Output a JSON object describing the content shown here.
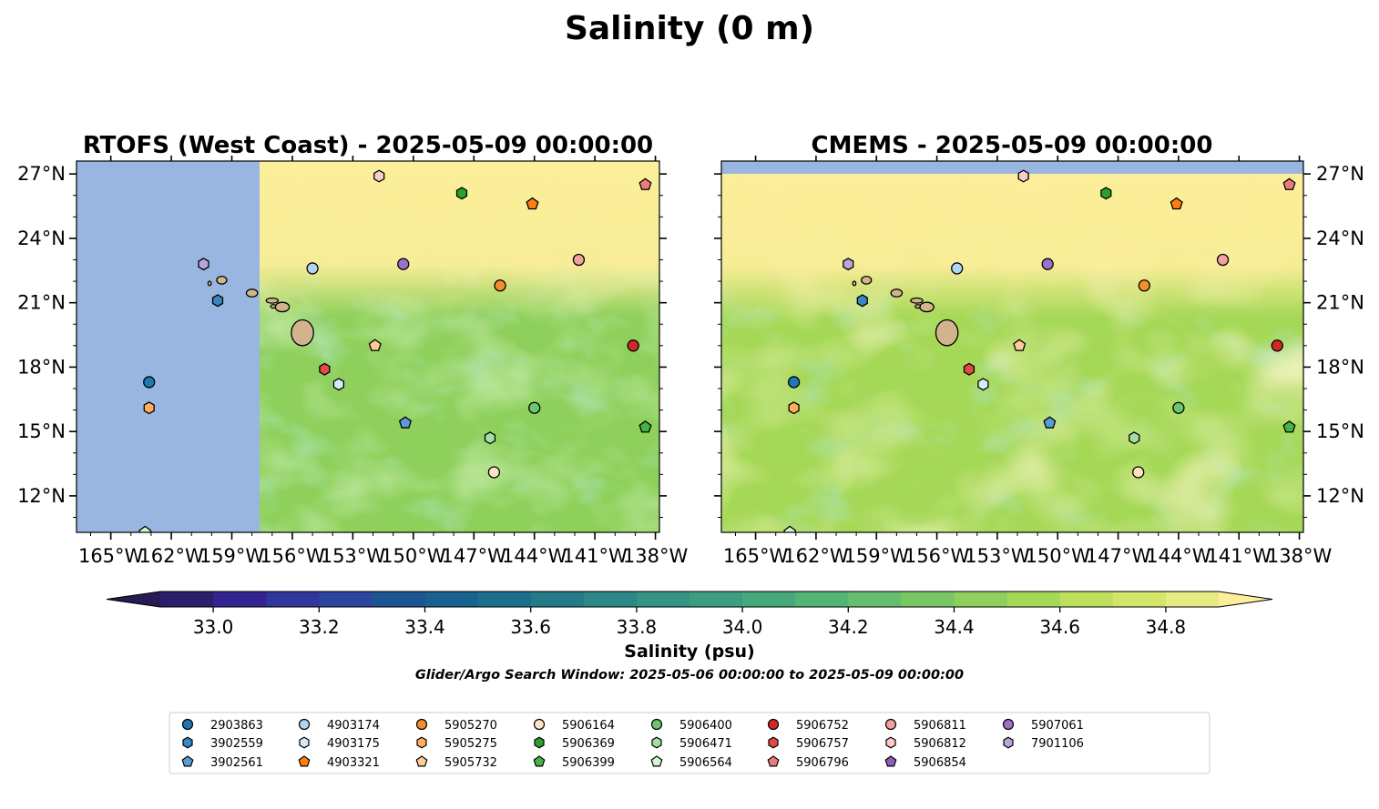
{
  "figure": {
    "title": "Salinity (0 m)"
  },
  "chart_data": [
    {
      "type": "heatmap",
      "title": "RTOFS (West Coast) - 2025-05-09 00:00:00",
      "xlim": [
        -166.7,
        -137.8
      ],
      "ylim": [
        10.3,
        27.6
      ],
      "xticks": [
        "165°W",
        "162°W",
        "159°W",
        "156°W",
        "153°W",
        "150°W",
        "147°W",
        "144°W",
        "141°W",
        "138°W"
      ],
      "yticks": [
        "27°N",
        "24°N",
        "21°N",
        "18°N",
        "15°N",
        "12°N"
      ],
      "ytick_side": "left",
      "no_data_region": {
        "lon_max": -157.6,
        "color": "#98b6e0"
      },
      "field": "model salinity, mostly 34.4–34.9 psu; higher (>34.8) north of ~22°N, lower (34.4–34.6) south",
      "floats": [
        {
          "id": "2903863",
          "lon": -163.1,
          "lat": 17.3
        },
        {
          "id": "3902559",
          "lon": -159.7,
          "lat": 21.1
        },
        {
          "id": "3902561",
          "lon": -150.4,
          "lat": 15.4
        },
        {
          "id": "4903174",
          "lon": -155.0,
          "lat": 22.6
        },
        {
          "id": "4903175",
          "lon": -153.7,
          "lat": 17.2
        },
        {
          "id": "4903321",
          "lon": -144.1,
          "lat": 25.6
        },
        {
          "id": "5905270",
          "lon": -145.7,
          "lat": 21.8
        },
        {
          "id": "5905275",
          "lon": -163.1,
          "lat": 16.1
        },
        {
          "id": "5905732",
          "lon": -151.9,
          "lat": 19.0
        },
        {
          "id": "5906164",
          "lon": -146.0,
          "lat": 13.1
        },
        {
          "id": "5906369",
          "lon": -147.6,
          "lat": 26.1
        },
        {
          "id": "5906399",
          "lon": -138.5,
          "lat": 15.2
        },
        {
          "id": "5906400",
          "lon": -144.0,
          "lat": 16.1
        },
        {
          "id": "5906471",
          "lon": -146.2,
          "lat": 14.7
        },
        {
          "id": "5906564",
          "lon": -163.3,
          "lat": 10.3
        },
        {
          "id": "5906752",
          "lon": -139.1,
          "lat": 19.0
        },
        {
          "id": "5906757",
          "lon": -154.4,
          "lat": 17.9
        },
        {
          "id": "5906796",
          "lon": -138.5,
          "lat": 26.5
        },
        {
          "id": "5906811",
          "lon": -141.8,
          "lat": 23.0
        },
        {
          "id": "5906812",
          "lon": -151.7,
          "lat": 26.9
        },
        {
          "id": "5906854",
          "lon": null,
          "lat": null
        },
        {
          "id": "5907061",
          "lon": -150.5,
          "lat": 22.8
        },
        {
          "id": "7901106",
          "lon": -160.4,
          "lat": 22.8
        }
      ]
    },
    {
      "type": "heatmap",
      "title": "CMEMS - 2025-05-09 00:00:00",
      "xlim": [
        -166.7,
        -137.8
      ],
      "ylim": [
        10.3,
        27.6
      ],
      "xticks": [
        "165°W",
        "162°W",
        "159°W",
        "156°W",
        "153°W",
        "150°W",
        "147°W",
        "144°W",
        "141°W",
        "138°W"
      ],
      "yticks": [
        "27°N",
        "24°N",
        "21°N",
        "18°N",
        "15°N",
        "12°N"
      ],
      "ytick_side": "right",
      "no_data_region": {
        "lat_min": 27.0,
        "color": "#98b6e0"
      },
      "field": "model salinity, eddying 34.4–34.9 psu; fresher tongues 34.5 across 12–22°N, >34.8 in north and southwest",
      "floats_same_as_panel": 0
    }
  ],
  "colorbar": {
    "label": "Salinity (psu)",
    "min": 32.9,
    "max": 34.9,
    "step": 0.1,
    "ticks": [
      "33.0",
      "33.2",
      "33.4",
      "33.6",
      "33.8",
      "34.0",
      "34.2",
      "34.4",
      "34.6",
      "34.8"
    ],
    "extend": "both",
    "colors": [
      "#2c1e6b",
      "#332591",
      "#30369b",
      "#2a459d",
      "#1c5494",
      "#18628f",
      "#1b6f8c",
      "#237b8a",
      "#2c8787",
      "#339384",
      "#3b9e81",
      "#45a97b",
      "#52b475",
      "#64be6d",
      "#78c764",
      "#8ed05b",
      "#a6d857",
      "#bddf5c",
      "#d3e56a",
      "#e8ea84"
    ],
    "under_color": "#271a55",
    "over_color": "#fcee9a"
  },
  "search_window": "Glider/Argo Search Window: 2025-05-06 00:00:00 to 2025-05-09 00:00:00",
  "legend": [
    {
      "id": "2903863",
      "marker": "circle",
      "color": "#1f77b4"
    },
    {
      "id": "3902559",
      "marker": "hexagon",
      "color": "#3a86c0"
    },
    {
      "id": "3902561",
      "marker": "pentagon",
      "color": "#5b9bd5"
    },
    {
      "id": "4903174",
      "marker": "circle",
      "color": "#aed6f1"
    },
    {
      "id": "4903175",
      "marker": "hexagon",
      "color": "#d6ebfa"
    },
    {
      "id": "4903321",
      "marker": "pentagon",
      "color": "#ff7f0e"
    },
    {
      "id": "5905270",
      "marker": "circle",
      "color": "#f28e2b"
    },
    {
      "id": "5905275",
      "marker": "hexagon",
      "color": "#ffae5b"
    },
    {
      "id": "5905732",
      "marker": "pentagon",
      "color": "#ffcc99"
    },
    {
      "id": "5906164",
      "marker": "circle",
      "color": "#ffe2c2"
    },
    {
      "id": "5906369",
      "marker": "hexagon",
      "color": "#2ca02c"
    },
    {
      "id": "5906399",
      "marker": "pentagon",
      "color": "#47b247"
    },
    {
      "id": "5906400",
      "marker": "circle",
      "color": "#6cc46c"
    },
    {
      "id": "5906471",
      "marker": "hexagon",
      "color": "#a4dea0"
    },
    {
      "id": "5906564",
      "marker": "pentagon",
      "color": "#d2f5cf"
    },
    {
      "id": "5906752",
      "marker": "circle",
      "color": "#d62728"
    },
    {
      "id": "5906757",
      "marker": "hexagon",
      "color": "#e24a4a"
    },
    {
      "id": "5906796",
      "marker": "pentagon",
      "color": "#ec7c7c"
    },
    {
      "id": "5906811",
      "marker": "circle",
      "color": "#f4a0a0"
    },
    {
      "id": "5906812",
      "marker": "hexagon",
      "color": "#fbcaca"
    },
    {
      "id": "5906854",
      "marker": "pentagon",
      "color": "#8c5fbe"
    },
    {
      "id": "5907061",
      "marker": "circle",
      "color": "#9b72c8"
    },
    {
      "id": "7901106",
      "marker": "hexagon",
      "color": "#bda3de"
    }
  ],
  "colors": {
    "ocean_nodata": "#98b6e0",
    "land": "#d2b48c"
  }
}
